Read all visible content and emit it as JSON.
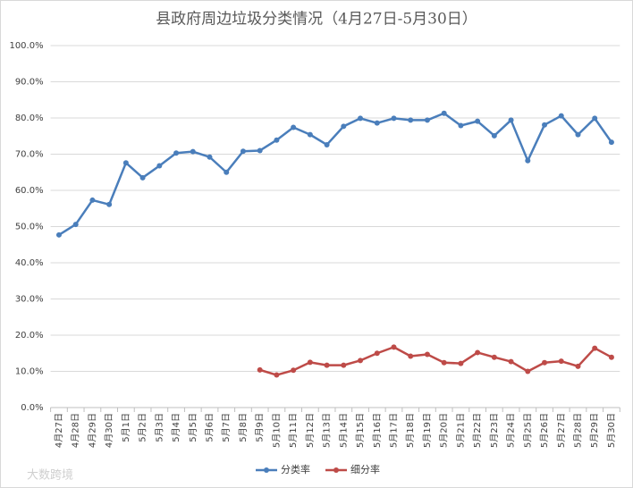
{
  "chart_data": {
    "type": "line",
    "title": "县政府周边垃圾分类情况（4月27日-5月30日）",
    "categories": [
      "4月27日",
      "4月28日",
      "4月29日",
      "4月30日",
      "5月1日",
      "5月2日",
      "5月3日",
      "5月4日",
      "5月5日",
      "5月6日",
      "5月7日",
      "5月8日",
      "5月9日",
      "5月10日",
      "5月11日",
      "5月12日",
      "5月13日",
      "5月14日",
      "5月15日",
      "5月16日",
      "5月17日",
      "5月18日",
      "5月19日",
      "5月20日",
      "5月21日",
      "5月22日",
      "5月23日",
      "5月24日",
      "5月25日",
      "5月26日",
      "5月27日",
      "5月28日",
      "5月29日",
      "5月30日"
    ],
    "series": [
      {
        "name": "分类率",
        "color": "#4a7ebb",
        "values": [
          47.7,
          50.6,
          57.3,
          56.1,
          67.6,
          63.5,
          66.8,
          70.3,
          70.7,
          69.2,
          65.0,
          70.8,
          71.0,
          73.9,
          77.4,
          75.4,
          72.6,
          77.7,
          79.9,
          78.6,
          79.9,
          79.4,
          79.4,
          81.3,
          77.9,
          79.1,
          75.1,
          79.4,
          68.2,
          78.1,
          80.6,
          75.4,
          79.9,
          73.3
        ]
      },
      {
        "name": "细分率",
        "color": "#be4b48",
        "values": [
          null,
          null,
          null,
          null,
          null,
          null,
          null,
          null,
          null,
          null,
          null,
          null,
          10.4,
          9.0,
          10.3,
          12.5,
          11.7,
          11.7,
          13.0,
          15.0,
          16.7,
          14.2,
          14.7,
          12.4,
          12.2,
          15.2,
          13.9,
          12.7,
          10.0,
          12.4,
          12.8,
          11.4,
          16.4,
          13.9
        ]
      }
    ],
    "ylim": [
      0,
      100
    ],
    "yticks": [
      {
        "value": 0,
        "label": "0.0%"
      },
      {
        "value": 10,
        "label": "10.0%"
      },
      {
        "value": 20,
        "label": "20.0%"
      },
      {
        "value": 30,
        "label": "30.0%"
      },
      {
        "value": 40,
        "label": "40.0%"
      },
      {
        "value": 50,
        "label": "50.0%"
      },
      {
        "value": 60,
        "label": "60.0%"
      },
      {
        "value": 70,
        "label": "70.0%"
      },
      {
        "value": 80,
        "label": "80.0%"
      },
      {
        "value": 90,
        "label": "90.0%"
      },
      {
        "value": 100,
        "label": "100.0%"
      }
    ],
    "grid": true,
    "legend": "bottom",
    "watermark": "大数跨境"
  }
}
